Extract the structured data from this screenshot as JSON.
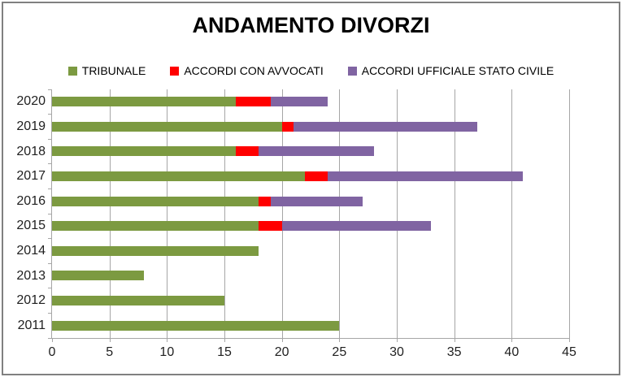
{
  "chart_data": {
    "type": "bar",
    "orientation": "horizontal",
    "stacked": true,
    "title": "ANDAMENTO DIVORZI",
    "categories": [
      "2020",
      "2019",
      "2018",
      "2017",
      "2016",
      "2015",
      "2014",
      "2013",
      "2012",
      "2011"
    ],
    "series": [
      {
        "name": "TRIBUNALE",
        "color": "#7C9A41",
        "values": [
          16,
          20,
          16,
          22,
          18,
          18,
          18,
          8,
          15,
          25
        ]
      },
      {
        "name": "ACCORDI CON AVVOCATI",
        "color": "#FF0000",
        "values": [
          3,
          1,
          2,
          2,
          1,
          2,
          0,
          0,
          0,
          0
        ]
      },
      {
        "name": "ACCORDI UFFICIALE STATO CIVILE",
        "color": "#8064A2",
        "values": [
          5,
          16,
          10,
          17,
          8,
          13,
          0,
          0,
          0,
          0
        ]
      }
    ],
    "totals": [
      24,
      37,
      28,
      41,
      27,
      33,
      18,
      8,
      15,
      25
    ],
    "x_ticks": [
      0,
      5,
      10,
      15,
      20,
      25,
      30,
      35,
      40,
      45
    ],
    "xlim": [
      0,
      45
    ],
    "xlabel": "",
    "ylabel": "",
    "grid": "vertical",
    "legend_position": "top"
  },
  "colors": {
    "background": "#FFFFFF",
    "border": "#808080",
    "gridline": "#A6A6A6",
    "axis": "#A6A6A6",
    "text": "#1F1F1F"
  }
}
